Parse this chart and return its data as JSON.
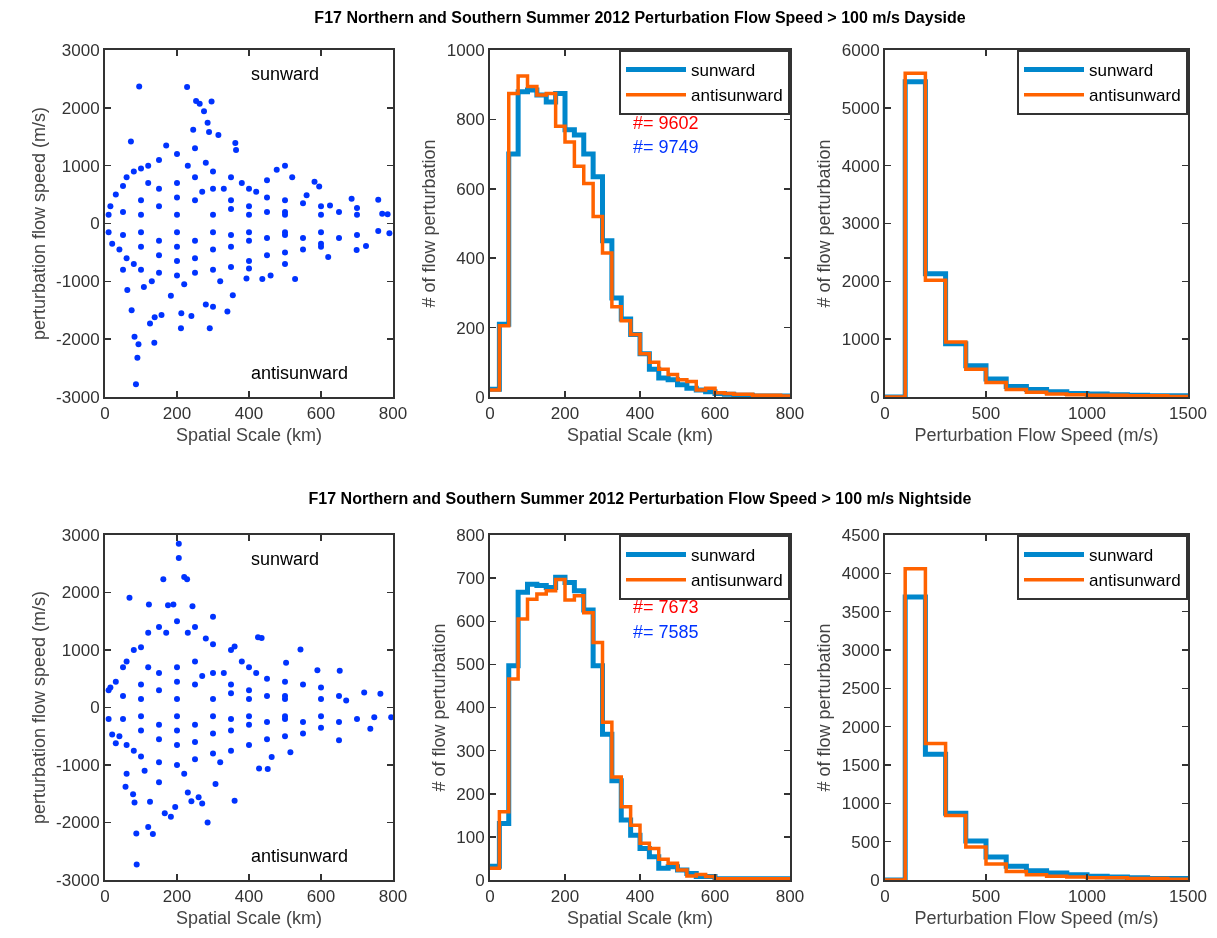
{
  "chart_data": [
    {
      "type": "scatter",
      "xlabel": "Spatial Scale (km)",
      "ylabel": "perturbation flow speed (m/s)",
      "xlim": [
        0,
        800
      ],
      "xticks": [
        0,
        200,
        400,
        600,
        800
      ],
      "ylim": [
        -3000,
        3000
      ],
      "yticks": [
        -3000,
        -2000,
        -1000,
        0,
        1000,
        2000,
        3000
      ],
      "marker": "circle",
      "annotations": [
        "sunward",
        "antisunward"
      ],
      "series": [
        {
          "color": "#0033ff",
          "x": [
            95,
            228,
            253,
            263,
            296,
            275,
            245,
            285,
            289,
            315,
            364,
            362,
            72,
            500,
            477,
            450,
            520,
            582,
            595,
            560,
            625,
            685,
            700,
            759,
            770,
            785,
            790,
            759,
            699,
            725,
            620,
            528,
            437,
            393,
            355,
            340,
            280,
            291,
            211,
            212,
            183,
            157,
            138,
            137,
            125,
            90,
            86,
            93,
            82,
            74,
            62,
            108,
            50,
            240,
            300,
            400,
            460,
            500,
            600,
            10,
            15,
            30,
            50,
            60,
            80,
            100,
            120,
            150,
            170,
            200,
            250,
            230,
            280,
            300,
            350,
            380,
            400,
            420,
            450,
            500,
            550,
            600,
            650,
            700,
            50,
            100,
            150,
            200,
            250,
            300,
            350,
            400,
            450,
            500,
            100,
            200,
            300,
            400,
            500,
            600,
            150,
            250,
            350,
            200,
            120,
            270,
            330,
            10,
            20,
            40,
            60,
            80,
            100,
            150,
            200,
            250,
            300,
            350,
            400,
            450,
            500,
            550,
            600,
            650,
            700,
            50,
            100,
            150,
            200,
            250,
            300,
            350,
            400,
            450,
            500,
            100,
            200,
            300,
            400,
            500,
            600,
            150,
            250,
            350,
            550,
            200,
            130,
            220,
            320
          ],
          "values": [
            2370,
            2360,
            2120,
            2070,
            2110,
            1940,
            1620,
            1740,
            1580,
            1530,
            1270,
            1390,
            1420,
            1000,
            930,
            750,
            800,
            720,
            640,
            490,
            310,
            430,
            270,
            410,
            170,
            160,
            -170,
            -130,
            -460,
            -390,
            -580,
            -960,
            -960,
            -950,
            -1240,
            -1520,
            -1400,
            -1810,
            -1810,
            -1550,
            -1250,
            -1580,
            -1620,
            -2060,
            -1730,
            -2320,
            -2780,
            -2090,
            -1960,
            -1500,
            -1150,
            -1100,
            -800,
            -1600,
            -1440,
            -780,
            -900,
            -700,
            -400,
            150,
            300,
            500,
            650,
            800,
            900,
            950,
            1000,
            1100,
            1350,
            1200,
            1300,
            1000,
            1050,
            900,
            800,
            700,
            600,
            550,
            450,
            400,
            350,
            300,
            200,
            150,
            200,
            400,
            600,
            700,
            800,
            600,
            400,
            300,
            200,
            200,
            150,
            150,
            150,
            150,
            150,
            150,
            300,
            400,
            250,
            450,
            700,
            550,
            600,
            -150,
            -350,
            -450,
            -600,
            -700,
            -800,
            -850,
            -900,
            -850,
            -800,
            -750,
            -650,
            -550,
            -500,
            -450,
            -350,
            -250,
            -200,
            -200,
            -400,
            -550,
            -650,
            -600,
            -450,
            -400,
            -300,
            -250,
            -200,
            -150,
            -150,
            -150,
            -150,
            -150,
            -150,
            -300,
            -300,
            -200,
            -250,
            -400,
            -1000,
            -1050,
            -1000
          ]
        }
      ]
    },
    {
      "type": "histogram",
      "title": "F17 Northern and Southern Summer 2012 Perturbation Flow Speed > 100 m/s Dayside",
      "xlabel": "Spatial Scale (km)",
      "ylabel": "# of flow perturbation",
      "xlim": [
        0,
        800
      ],
      "xticks": [
        0,
        200,
        400,
        600,
        800
      ],
      "ylim": [
        0,
        1000
      ],
      "yticks": [
        0,
        200,
        400,
        600,
        800,
        1000
      ],
      "legend": "top right",
      "annotations": [
        "#= 9602",
        "#= 9749"
      ],
      "bins": [
        0,
        25,
        50,
        75,
        100,
        125,
        150,
        175,
        200,
        225,
        250,
        275,
        300,
        325,
        350,
        375,
        400,
        425,
        450,
        475,
        500,
        525,
        550,
        575,
        600,
        625,
        650,
        675,
        700,
        725,
        750,
        775,
        800
      ],
      "series": [
        {
          "name": "sunward",
          "color": "#0087cc",
          "values": [
            22,
            210,
            700,
            880,
            885,
            870,
            850,
            875,
            770,
            755,
            700,
            635,
            450,
            285,
            225,
            180,
            125,
            80,
            55,
            50,
            35,
            25,
            20,
            15,
            10,
            8,
            5,
            5,
            3,
            3,
            3,
            3
          ]
        },
        {
          "name": "antisunward",
          "color": "#ff6200",
          "values": [
            20,
            205,
            875,
            925,
            895,
            870,
            875,
            780,
            735,
            665,
            615,
            520,
            415,
            260,
            220,
            180,
            125,
            100,
            80,
            65,
            50,
            45,
            20,
            25,
            12,
            10,
            8,
            8,
            5,
            5,
            5,
            3
          ]
        }
      ]
    },
    {
      "type": "histogram",
      "xlabel": "Perturbation Flow Speed (m/s)",
      "ylabel": "# of flow perturbation",
      "xlim": [
        0,
        1500
      ],
      "xticks": [
        0,
        500,
        1000,
        1500
      ],
      "ylim": [
        0,
        6000
      ],
      "yticks": [
        0,
        1000,
        2000,
        3000,
        4000,
        5000,
        6000
      ],
      "legend": "top right",
      "bins": [
        0,
        100,
        200,
        300,
        400,
        500,
        600,
        700,
        800,
        900,
        1000,
        1100,
        1200,
        1300,
        1400,
        1500
      ],
      "series": [
        {
          "name": "sunward",
          "color": "#0087cc",
          "values": [
            0,
            5450,
            2130,
            920,
            540,
            310,
            180,
            130,
            90,
            60,
            50,
            40,
            30,
            20,
            20
          ]
        },
        {
          "name": "antisunward",
          "color": "#ff6200",
          "values": [
            0,
            5600,
            2020,
            950,
            480,
            250,
            130,
            80,
            50,
            40,
            30,
            30,
            20,
            20,
            10
          ]
        }
      ]
    },
    {
      "type": "scatter",
      "xlabel": "Spatial Scale (km)",
      "ylabel": "perturbation flow speed (m/s)",
      "xlim": [
        0,
        800
      ],
      "xticks": [
        0,
        200,
        400,
        600,
        800
      ],
      "ylim": [
        -3000,
        3000
      ],
      "yticks": [
        -3000,
        -2000,
        -1000,
        0,
        1000,
        2000,
        3000
      ],
      "marker": "circle",
      "annotations": [
        "sunward",
        "antisunward"
      ],
      "series": [
        {
          "color": "#0033ff",
          "x": [
            205,
            205,
            220,
            228,
            162,
            68,
            122,
            190,
            175,
            243,
            300,
            360,
            425,
            435,
            543,
            503,
            590,
            652,
            670,
            720,
            765,
            795,
            748,
            737,
            650,
            515,
            463,
            428,
            452,
            360,
            285,
            307,
            240,
            195,
            183,
            166,
            133,
            120,
            88,
            87,
            82,
            78,
            57,
            125,
            150,
            260,
            270,
            230,
            10,
            20,
            30,
            60,
            10,
            15,
            30,
            50,
            60,
            80,
            100,
            120,
            150,
            170,
            200,
            250,
            230,
            280,
            300,
            350,
            380,
            400,
            420,
            450,
            500,
            550,
            600,
            650,
            50,
            100,
            150,
            200,
            250,
            300,
            350,
            400,
            450,
            500,
            100,
            200,
            300,
            400,
            500,
            600,
            150,
            250,
            350,
            200,
            120,
            270,
            330,
            40,
            60,
            80,
            100,
            150,
            200,
            250,
            300,
            350,
            400,
            450,
            500,
            550,
            600,
            650,
            700,
            50,
            100,
            150,
            200,
            250,
            300,
            350,
            400,
            450,
            500,
            100,
            200,
            300,
            400,
            500,
            600,
            150,
            250,
            350,
            550,
            200,
            110,
            220,
            320
          ],
          "values": [
            2850,
            2600,
            2270,
            2230,
            2230,
            1910,
            1790,
            1790,
            1780,
            1760,
            1580,
            1060,
            1220,
            1210,
            1010,
            780,
            650,
            640,
            120,
            260,
            240,
            -170,
            -170,
            -370,
            -570,
            -780,
            -860,
            -1060,
            -1070,
            -1620,
            -2000,
            -1330,
            -1630,
            -1730,
            -1900,
            -1840,
            -2200,
            -2080,
            -2730,
            -2190,
            -1650,
            -1510,
            -1380,
            -1640,
            -1300,
            -1560,
            -1670,
            -1480,
            -200,
            -470,
            -620,
            -1150,
            300,
            350,
            450,
            700,
            800,
            1000,
            1050,
            1300,
            1400,
            1300,
            1500,
            1400,
            1300,
            1200,
            1100,
            1000,
            800,
            700,
            600,
            500,
            450,
            400,
            350,
            200,
            200,
            400,
            600,
            700,
            800,
            600,
            400,
            300,
            200,
            200,
            150,
            150,
            150,
            150,
            150,
            150,
            300,
            400,
            250,
            450,
            700,
            550,
            600,
            -500,
            -650,
            -750,
            -850,
            -950,
            -1000,
            -900,
            -800,
            -750,
            -650,
            -550,
            -500,
            -450,
            -350,
            -250,
            -200,
            -200,
            -400,
            -550,
            -650,
            -600,
            -450,
            -400,
            -300,
            -250,
            -200,
            -150,
            -150,
            -150,
            -150,
            -150,
            -150,
            -300,
            -300,
            -200,
            -250,
            -400,
            -1100,
            -1150,
            -950
          ]
        }
      ]
    },
    {
      "type": "histogram",
      "title": "F17 Northern and Southern Summer 2012 Perturbation Flow Speed > 100 m/s Nightside",
      "xlabel": "Spatial Scale (km)",
      "ylabel": "# of flow perturbation",
      "xlim": [
        0,
        800
      ],
      "xticks": [
        0,
        200,
        400,
        600,
        800
      ],
      "ylim": [
        0,
        800
      ],
      "yticks": [
        0,
        100,
        200,
        300,
        400,
        500,
        600,
        700,
        800
      ],
      "legend": "top right",
      "annotations": [
        "#= 7673",
        "#= 7585"
      ],
      "bins": [
        0,
        25,
        50,
        75,
        100,
        125,
        150,
        175,
        200,
        225,
        250,
        275,
        300,
        325,
        350,
        375,
        400,
        425,
        450,
        475,
        500,
        525,
        550,
        575,
        600,
        625,
        650,
        675,
        700,
        725,
        750,
        775,
        800
      ],
      "series": [
        {
          "name": "sunward",
          "color": "#0087cc",
          "values": [
            32,
            131,
            497,
            667,
            686,
            683,
            678,
            702,
            690,
            671,
            626,
            497,
            338,
            230,
            139,
            104,
            73,
            54,
            27,
            31,
            23,
            15,
            8,
            8,
            3,
            3,
            3,
            3,
            3,
            3,
            3,
            3
          ]
        },
        {
          "name": "antisunward",
          "color": "#ff6200",
          "values": [
            27,
            158,
            466,
            605,
            651,
            663,
            671,
            697,
            649,
            659,
            620,
            551,
            366,
            239,
            170,
            127,
            85,
            73,
            48,
            39,
            23,
            9,
            13,
            8,
            3,
            3,
            3,
            3,
            3,
            3,
            3,
            3
          ]
        }
      ]
    },
    {
      "type": "histogram",
      "xlabel": "Perturbation Flow Speed (m/s)",
      "ylabel": "# of flow perturbation",
      "xlim": [
        0,
        1500
      ],
      "xticks": [
        0,
        500,
        1000,
        1500
      ],
      "ylim": [
        0,
        4500
      ],
      "yticks": [
        0,
        500,
        1000,
        1500,
        2000,
        2500,
        3000,
        3500,
        4000,
        4500
      ],
      "legend": "top right",
      "bins": [
        0,
        100,
        200,
        300,
        400,
        500,
        600,
        700,
        800,
        900,
        1000,
        1100,
        1200,
        1300,
        1400,
        1500
      ],
      "series": [
        {
          "name": "sunward",
          "color": "#0087cc",
          "values": [
            0,
            3690,
            1640,
            870,
            510,
            300,
            180,
            120,
            90,
            70,
            50,
            40,
            30,
            20,
            20
          ]
        },
        {
          "name": "antisunward",
          "color": "#ff6200",
          "values": [
            0,
            4060,
            1780,
            840,
            430,
            210,
            110,
            70,
            50,
            40,
            30,
            30,
            20,
            20,
            10
          ]
        }
      ]
    }
  ]
}
